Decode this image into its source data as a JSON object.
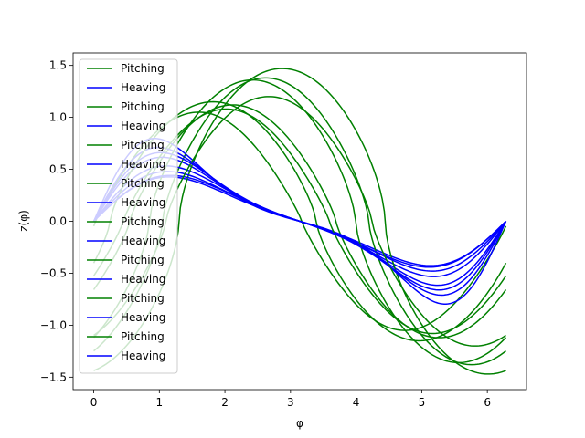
{
  "chart_data": {
    "type": "line",
    "title": "",
    "xlabel": "φ",
    "ylabel": "z(φ)",
    "xlim": [
      -0.314,
      6.597
    ],
    "ylim": [
      -1.62,
      1.62
    ],
    "grid": false,
    "legend_position": "upper-left",
    "x_ticks": [
      0,
      1,
      2,
      3,
      4,
      5,
      6
    ],
    "x_tick_labels": [
      "0",
      "1",
      "2",
      "3",
      "4",
      "5",
      "6"
    ],
    "y_ticks": [
      -1.5,
      -1.0,
      -0.5,
      0.0,
      0.5,
      1.0,
      1.5
    ],
    "y_tick_labels": [
      "−1.5",
      "−1.0",
      "−0.5",
      "0.0",
      "0.5",
      "1.0",
      "1.5"
    ],
    "colors": {
      "Pitching": "#008000",
      "Heaving": "#0000ff"
    },
    "series": [
      {
        "name": "Pitching",
        "kind": "pitch",
        "phase0": -0.03,
        "amp": 1.05,
        "skew": 0.25
      },
      {
        "name": "Heaving",
        "kind": "heave",
        "phase0": 0.85,
        "amp": 0.45,
        "skew": 0.2
      },
      {
        "name": "Pitching",
        "kind": "pitch",
        "phase0": -1.05,
        "amp": 1.38,
        "skew": 0.65
      },
      {
        "name": "Heaving",
        "kind": "heave",
        "phase0": 0.45,
        "amp": 0.55,
        "skew": 0.3
      },
      {
        "name": "Pitching",
        "kind": "pitch",
        "phase0": -0.55,
        "amp": 1.12,
        "skew": 0.4
      },
      {
        "name": "Heaving",
        "kind": "heave",
        "phase0": 0.3,
        "amp": 0.62,
        "skew": 0.45
      },
      {
        "name": "Pitching",
        "kind": "pitch",
        "phase0": -1.3,
        "amp": 1.47,
        "skew": 0.85
      },
      {
        "name": "Heaving",
        "kind": "heave",
        "phase0": 0.15,
        "amp": 0.7,
        "skew": 0.6
      },
      {
        "name": "Pitching",
        "kind": "pitch",
        "phase0": -0.25,
        "amp": 1.15,
        "skew": 0.55
      },
      {
        "name": "Heaving",
        "kind": "heave",
        "phase0": 0.6,
        "amp": 0.5,
        "skew": 0.25
      },
      {
        "name": "Pitching",
        "kind": "pitch",
        "phase0": -0.85,
        "amp": 1.36,
        "skew": 0.7
      },
      {
        "name": "Heaving",
        "kind": "heave",
        "phase0": 0.05,
        "amp": 0.77,
        "skew": 0.75
      },
      {
        "name": "Pitching",
        "kind": "pitch",
        "phase0": -0.45,
        "amp": 1.08,
        "skew": 0.3
      },
      {
        "name": "Heaving",
        "kind": "heave",
        "phase0": 0.7,
        "amp": 0.47,
        "skew": 0.15
      },
      {
        "name": "Pitching",
        "kind": "pitch",
        "phase0": -1.1,
        "amp": 1.2,
        "skew": 0.5
      },
      {
        "name": "Heaving",
        "kind": "heave",
        "phase0": 0.25,
        "amp": 0.66,
        "skew": 0.5
      }
    ],
    "legend": [
      "Pitching",
      "Heaving",
      "Pitching",
      "Heaving",
      "Pitching",
      "Heaving",
      "Pitching",
      "Heaving",
      "Pitching",
      "Heaving",
      "Pitching",
      "Heaving",
      "Pitching",
      "Heaving",
      "Pitching",
      "Heaving"
    ]
  }
}
